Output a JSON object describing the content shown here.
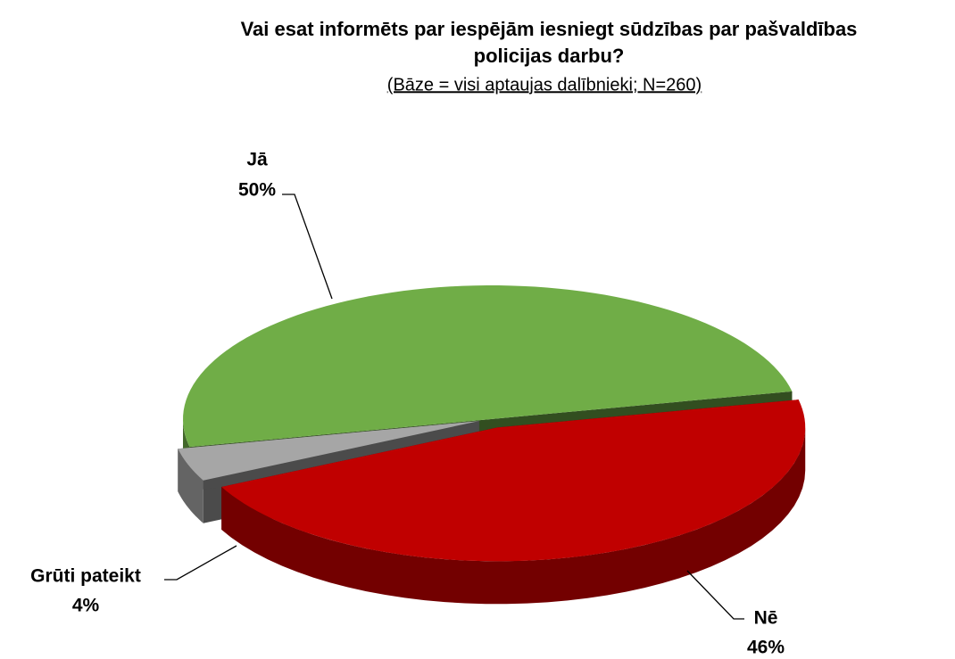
{
  "chart_data": {
    "type": "pie",
    "title": [
      "Vai esat informēts par iespējām iesniegt sūdzības par pašvaldības",
      "policijas darbu?"
    ],
    "subtitle": "(Bāze = visi aptaujas dalībnieki;  N=260)",
    "categories": [
      "Jā",
      "Nē",
      "Grūti pateikt"
    ],
    "values": [
      50,
      46,
      4
    ],
    "value_labels": [
      "50%",
      "46%",
      "4%"
    ],
    "colors": [
      "#70ad47",
      "#c00000",
      "#a6a6a6"
    ]
  }
}
